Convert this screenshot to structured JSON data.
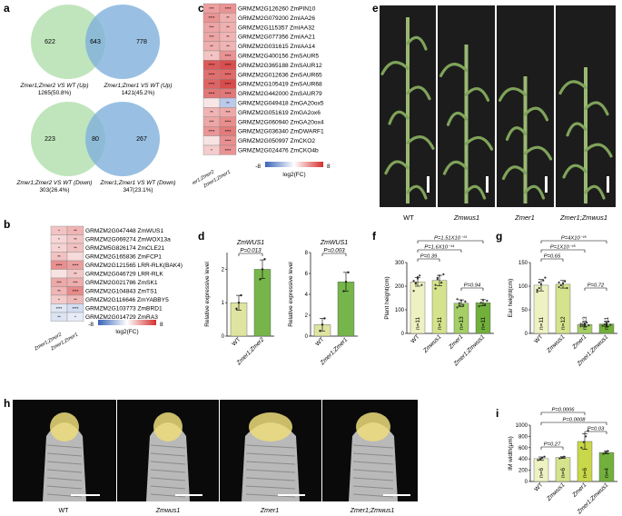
{
  "panel_labels": {
    "a": "a",
    "b": "b",
    "c": "c",
    "d": "d",
    "e": "e",
    "f": "f",
    "g": "g",
    "h": "h",
    "i": "i"
  },
  "panel_a": {
    "up": {
      "left_only": "622",
      "overlap": "643",
      "right_only": "778",
      "left_caption": "Zmer1;Zmer2 VS WT (Up)",
      "left_count": "1265(50.8%)",
      "right_caption": "Zmer1;Zmer1 VS WT (Up)",
      "right_count": "1421(45.2%)"
    },
    "down": {
      "left_only": "223",
      "overlap": "80",
      "right_only": "267",
      "left_caption": "Zmer1;Zmer2 VS WT (Down)",
      "left_count": "303(26.4%)",
      "right_caption": "Zmer1;Zmer1 VS WT (Down)",
      "right_count": "347(23.1%)"
    },
    "colors": {
      "green": "#b5e0b0",
      "blue": "#7fb0dc"
    }
  },
  "panel_b": {
    "columns": [
      "Zmer1;Zmer2",
      "Zmer1;Zmer1"
    ],
    "genes": [
      {
        "name": "GRMZM2G047448 ZmWUS1",
        "stars": [
          "*",
          "**"
        ],
        "colors": [
          "#f3c3c3",
          "#f0b4b4"
        ]
      },
      {
        "name": "GRMZM2G069274 ZmWOX13a",
        "stars": [
          "*",
          "**"
        ],
        "colors": [
          "#f6d6d6",
          "#f3c6c6"
        ]
      },
      {
        "name": "GRMZM5G826174 ZmCLE21",
        "stars": [
          "*",
          "**"
        ],
        "colors": [
          "#f6d3d3",
          "#f2c0c0"
        ]
      },
      {
        "name": "GRMZM2G165836 ZmFCP1",
        "stars": [
          "**",
          ""
        ],
        "colors": [
          "#f2c2c2",
          "#f7dada"
        ]
      },
      {
        "name": "GRMZM2G121565 LRR-RLK(BAK4)",
        "stars": [
          "****",
          "****"
        ],
        "colors": [
          "#e88f8f",
          "#ec9f9f"
        ]
      },
      {
        "name": "GRMZM2G046729 LRR-RLK",
        "stars": [
          "",
          "**"
        ],
        "colors": [
          "#f8e3e3",
          "#f3c7c7"
        ]
      },
      {
        "name": "GRMZM2G021786 ZmSK1",
        "stars": [
          "***",
          "***"
        ],
        "colors": [
          "#eda8a8",
          "#eeaeae"
        ]
      },
      {
        "name": "GRMZM2G104843 ZmTS1",
        "stars": [
          "**",
          "****"
        ],
        "colors": [
          "#f0b5b5",
          "#e88a8a"
        ]
      },
      {
        "name": "GRMZM2G116646 ZmYABBY5",
        "stars": [
          "*",
          "**"
        ],
        "colors": [
          "#f4cbcb",
          "#f0b9b9"
        ]
      },
      {
        "name": "GRMZM2G103773 ZmBRD1",
        "stars": [
          "****",
          "****"
        ],
        "colors": [
          "#dfe7f4",
          "#d3def2"
        ]
      },
      {
        "name": "GRMZM2G014729 ZmRA3",
        "stars": [
          "**",
          "*"
        ],
        "colors": [
          "#dce4f3",
          "#e6ecf7"
        ]
      }
    ],
    "legend_min": "-8",
    "legend_max": "8",
    "legend_label": "log2(FC)"
  },
  "panel_c": {
    "columns": [
      "Zmer1;Zmer2",
      "Zmer1;Zmer1"
    ],
    "genes": [
      {
        "name": "GRMZM2G126260 ZmPIN10",
        "stars": [
          "***",
          "****"
        ],
        "colors": [
          "#ee9e9e",
          "#ea9393"
        ]
      },
      {
        "name": "GRMZM2G079200 ZmIAA26",
        "stars": [
          "****",
          "**"
        ],
        "colors": [
          "#ea9393",
          "#f0b0b0"
        ]
      },
      {
        "name": "GRMZM2G115357 ZmIAA32",
        "stars": [
          "***",
          "**"
        ],
        "colors": [
          "#eda4a4",
          "#efb0b0"
        ]
      },
      {
        "name": "GRMZM2G077356 ZmIAA21",
        "stars": [
          "***",
          "**"
        ],
        "colors": [
          "#eda4a4",
          "#f0b4b4"
        ]
      },
      {
        "name": "GRMZM2G031615 ZmIAA14",
        "stars": [
          "**",
          "**"
        ],
        "colors": [
          "#efadad",
          "#f0b4b4"
        ]
      },
      {
        "name": "GRMZM2G400156 ZmSAUR5",
        "stars": [
          "*",
          "****"
        ],
        "colors": [
          "#f3c4c4",
          "#ea9393"
        ]
      },
      {
        "name": "GRMZM2G365188 ZmSAUR12",
        "stars": [
          "****",
          "****"
        ],
        "colors": [
          "#dc5a5a",
          "#d94e4e"
        ]
      },
      {
        "name": "GRMZM2G012636 ZmSAUR65",
        "stars": [
          "****",
          "****"
        ],
        "colors": [
          "#e07070",
          "#de6a6a"
        ]
      },
      {
        "name": "GRMZM2G105419 ZmSAUR68",
        "stars": [
          "****",
          "****"
        ],
        "colors": [
          "#de6464",
          "#d84c4c"
        ]
      },
      {
        "name": "GRMZM2G442000 ZmSAUR79",
        "stars": [
          "****",
          "****"
        ],
        "colors": [
          "#e27777",
          "#e27878"
        ]
      },
      {
        "name": "GRMZM2G049418 ZmGA20ox5",
        "stars": [
          "",
          "**"
        ],
        "colors": [
          "#f8e5e5",
          "#b9caea"
        ]
      },
      {
        "name": "GRMZM2G051619 ZmGA2ox6",
        "stars": [
          "**",
          "***"
        ],
        "colors": [
          "#f0b4b4",
          "#eeaaaa"
        ]
      },
      {
        "name": "GRMZM2G060940 ZmGA20ox4",
        "stars": [
          "***",
          "****"
        ],
        "colors": [
          "#eda7a7",
          "#e98d8d"
        ]
      },
      {
        "name": "GRMZM2G036340 ZmDWARF1",
        "stars": [
          "****",
          "****"
        ],
        "colors": [
          "#ea9696",
          "#e27b7b"
        ]
      },
      {
        "name": "GRMZM2G050997 ZmCKO2",
        "stars": [
          "",
          "****"
        ],
        "colors": [
          "#f8e3e3",
          "#e98f8f"
        ]
      },
      {
        "name": "GRMZM2G024476 ZmCKO4b",
        "stars": [
          "*",
          "****"
        ],
        "colors": [
          "#f4cccc",
          "#ea9393"
        ]
      }
    ],
    "legend_min": "-8",
    "legend_max": "8",
    "legend_label": "log2(FC)"
  },
  "panel_d": {
    "charts": [
      {
        "title": "ZmWUS1",
        "ylabel": "Relative expressive level",
        "pvalue": "P=0.013",
        "categories": [
          "WT",
          "Zmer1;Zmer2"
        ],
        "values": [
          1.0,
          2.0
        ],
        "errors": [
          0.22,
          0.28
        ],
        "points": [
          [
            0.82,
            1.0,
            1.22
          ],
          [
            1.7,
            2.0,
            2.3
          ]
        ],
        "ylim": [
          0,
          2.5
        ],
        "yticks": [
          "0",
          "1",
          "2"
        ]
      },
      {
        "title": "ZmWUS1",
        "ylabel": "Relative expressive level",
        "pvalue": "P=0.003",
        "categories": [
          "WT",
          "Zmer1;Zmer1"
        ],
        "values": [
          1.1,
          5.2
        ],
        "errors": [
          0.6,
          0.9
        ],
        "points": [
          [
            0.5,
            1.1,
            1.7
          ],
          [
            4.3,
            5.2,
            6.1
          ]
        ],
        "ylim": [
          0,
          8
        ],
        "yticks": [
          "0",
          "2",
          "4",
          "6",
          "8"
        ]
      }
    ],
    "colors": {
      "wt": "#dfe4a0",
      "mutant": "#76b54a"
    }
  },
  "panel_e": {
    "labels": [
      "WT",
      "Zmwus1",
      "Zmer1",
      "Zmer1;Zmwus1"
    ],
    "background": "#1c1c1c"
  },
  "panel_f": {
    "ylabel": "Plant height(cm)",
    "categories": [
      "WT",
      "Zmwus1",
      "Zmer1",
      "Zmer1;Zmwus1"
    ],
    "values": [
      218,
      224,
      128,
      130
    ],
    "errors": [
      18,
      22,
      14,
      13
    ],
    "n_labels": [
      "n=11",
      "n=11",
      "n=13",
      "n=11"
    ],
    "ylim": [
      0,
      300
    ],
    "yticks": [
      "0",
      "100",
      "200",
      "300"
    ],
    "pvalues": [
      "P=1.51X10⁻¹³",
      "P=1.6X10⁻¹⁴",
      "P=0.39",
      "P=0.94"
    ],
    "colors": [
      "#eef2c2",
      "#d4e38c",
      "#a4cf66",
      "#72b03c"
    ]
  },
  "panel_g": {
    "ylabel": "Ear height(cm)",
    "categories": [
      "WT",
      "Zmwus1",
      "Zmer1",
      "Zmer1;Zmwus1"
    ],
    "values": [
      102,
      104,
      19,
      20
    ],
    "errors": [
      12,
      8,
      4,
      5
    ],
    "n_labels": [
      "n=11",
      "n=12",
      "n=13",
      "n=11"
    ],
    "ylim": [
      0,
      150
    ],
    "yticks": [
      "0",
      "50",
      "100",
      "150"
    ],
    "pvalues": [
      "P=4X10⁻¹⁵",
      "P=1X10⁻¹⁵",
      "P=0.65",
      "P=0.72"
    ],
    "colors": [
      "#eef2c2",
      "#d4e38c",
      "#a4cf66",
      "#72b03c"
    ]
  },
  "panel_h": {
    "labels": [
      "WT",
      "Zmwus1",
      "Zmer1",
      "Zmer1;Zmwus1"
    ]
  },
  "panel_i": {
    "ylabel": "IM width(μm)",
    "categories": [
      "WT",
      "Zmwus1",
      "Zmer1",
      "Zmer1;Zmwus1"
    ],
    "values": [
      405,
      425,
      710,
      515
    ],
    "errors": [
      30,
      15,
      140,
      25
    ],
    "n_labels": [
      "n=6",
      "n=6",
      "n=6",
      "n=4"
    ],
    "ylim": [
      0,
      1000
    ],
    "yticks": [
      "0",
      "200",
      "400",
      "600",
      "800",
      "1000"
    ],
    "pvalues": [
      "P=0.0006",
      "P=0.0008",
      "P=0.03",
      "P=0.27"
    ],
    "colors": [
      "#eef2c2",
      "#d4e38c",
      "#c9d74a",
      "#72b03c"
    ]
  }
}
